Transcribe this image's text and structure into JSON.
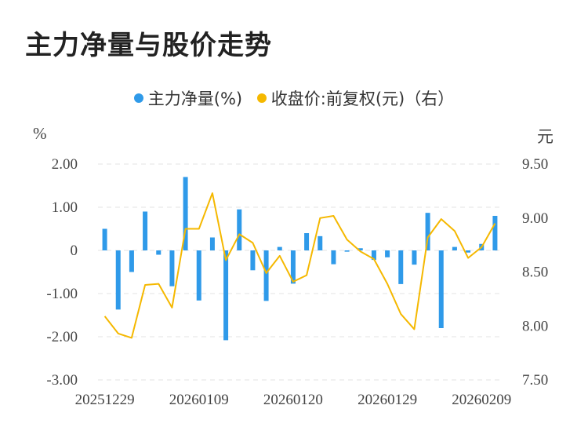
{
  "page": {
    "title": "主力净量与股价走势",
    "unit_left": "%",
    "unit_right": "元"
  },
  "chart_data": {
    "type": "bar+line",
    "legend": [
      {
        "label": "主力净量(%)",
        "color": "#2f9ae9",
        "marker": "dot"
      },
      {
        "label": "收盘价:前复权(元)（右）",
        "color": "#f5b800",
        "marker": "dot"
      }
    ],
    "legend_placement": "top-center",
    "grid": "horizontal-dashed",
    "y_left": {
      "ticks": [
        "2.00",
        "1.00",
        "0",
        "-1.00",
        "-2.00",
        "-3.00"
      ],
      "range": [
        -3,
        2
      ]
    },
    "y_right": {
      "ticks": [
        "9.50",
        "9.00",
        "8.50",
        "8.00",
        "7.50"
      ],
      "range": [
        7.5,
        9.5
      ]
    },
    "x_tick_labels": [
      "20251229",
      "20260109",
      "20260120",
      "20260129",
      "20260209"
    ],
    "series": [
      {
        "name": "主力净量(%)",
        "type": "bar",
        "color": "#2f9ae9",
        "values": [
          0.5,
          -1.37,
          -0.5,
          0.9,
          -0.1,
          -0.83,
          1.7,
          -1.16,
          0.3,
          -2.08,
          0.95,
          -0.46,
          -1.17,
          0.08,
          -0.77,
          0.4,
          0.33,
          -0.32,
          -0.03,
          0.05,
          -0.22,
          -0.16,
          -0.78,
          -0.33,
          0.87,
          -1.8,
          0.08,
          -0.05,
          0.15,
          0.8
        ]
      },
      {
        "name": "收盘价:前复权(元)（右）",
        "type": "line",
        "color": "#f5b800",
        "values": [
          8.09,
          7.93,
          7.89,
          8.38,
          8.39,
          8.17,
          8.9,
          8.9,
          9.23,
          8.61,
          8.85,
          8.77,
          8.49,
          8.65,
          8.41,
          8.47,
          9.0,
          9.02,
          8.8,
          8.69,
          8.62,
          8.39,
          8.11,
          7.97,
          8.82,
          8.99,
          8.88,
          8.63,
          8.73,
          8.95
        ]
      }
    ]
  }
}
